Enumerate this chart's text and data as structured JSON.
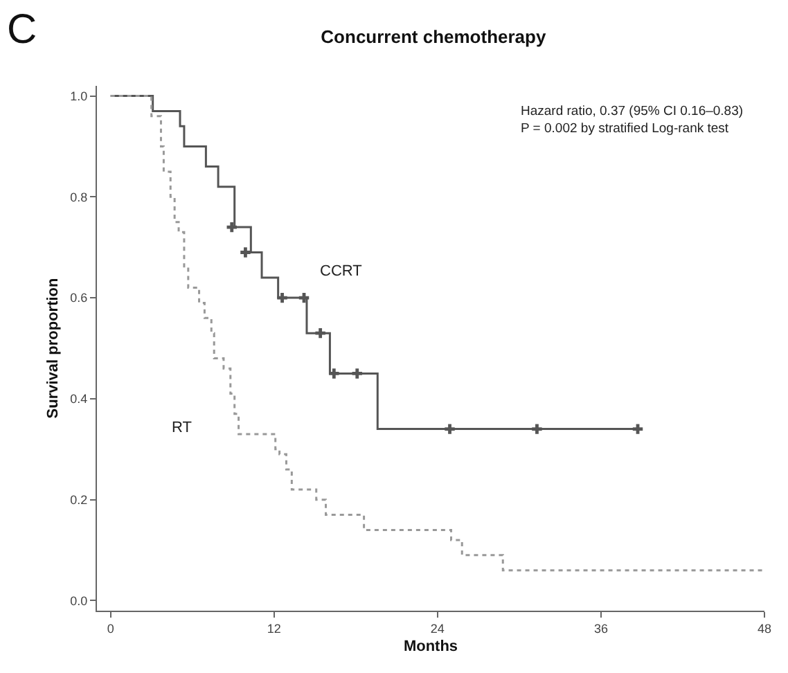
{
  "chart_data": {
    "type": "step",
    "title": "Concurrent chemotherapy",
    "xlabel": "Months",
    "ylabel": "Survival proportion",
    "annotations": [
      "C",
      "Hazard ratio, 0.37 (95% CI 0.16–0.83)",
      "P = 0.002 by stratified Log-rank test"
    ],
    "xlim": [
      -1,
      48
    ],
    "ylim": [
      -0.02,
      1.02
    ],
    "xticks": [
      0,
      12,
      24,
      36,
      48
    ],
    "yticks": [
      {
        "value": 0,
        "label": "0.0"
      },
      {
        "value": 0.2,
        "label": "0.2"
      },
      {
        "value": 0.4,
        "label": "0.4"
      },
      {
        "value": 0.6,
        "label": "0.6"
      },
      {
        "value": 0.8,
        "label": "0.8"
      },
      {
        "value": 1,
        "label": "1.0"
      }
    ],
    "legend": false,
    "series": [
      {
        "name": "CCRT",
        "color": "#555555",
        "line_style": "solid",
        "x": [
          0,
          3.1,
          5.1,
          5.4,
          7.0,
          7.9,
          9.1,
          10.3,
          11.1,
          12.3,
          14.4,
          16.1,
          19.6,
          38.7
        ],
        "values": [
          1.0,
          0.97,
          0.94,
          0.9,
          0.86,
          0.82,
          0.74,
          0.69,
          0.64,
          0.6,
          0.53,
          0.45,
          0.34,
          0.34
        ]
      },
      {
        "name": "RT",
        "color": "#999999",
        "line_style": "dotted",
        "x": [
          0,
          3.0,
          3.7,
          3.9,
          4.4,
          4.7,
          5.0,
          5.4,
          5.7,
          6.5,
          6.9,
          7.4,
          7.6,
          8.3,
          8.8,
          9.1,
          9.4,
          12.1,
          12.4,
          12.9,
          13.3,
          15.1,
          15.8,
          18.6,
          25.0,
          25.8,
          28.8,
          48
        ],
        "values": [
          1.0,
          0.96,
          0.9,
          0.85,
          0.8,
          0.75,
          0.73,
          0.66,
          0.62,
          0.59,
          0.56,
          0.53,
          0.48,
          0.46,
          0.41,
          0.37,
          0.33,
          0.3,
          0.29,
          0.26,
          0.22,
          0.2,
          0.17,
          0.14,
          0.12,
          0.09,
          0.06,
          0.06
        ]
      },
      {
        "type": "scatter",
        "marker": "cross",
        "color": "#555555",
        "x": [
          8.9,
          9.9,
          12.6,
          14.2,
          15.4,
          16.4,
          18.1,
          24.9,
          31.3,
          38.7
        ],
        "values": [
          0.74,
          0.69,
          0.6,
          0.6,
          0.53,
          0.45,
          0.45,
          0.34,
          0.34,
          0.34
        ]
      }
    ]
  }
}
